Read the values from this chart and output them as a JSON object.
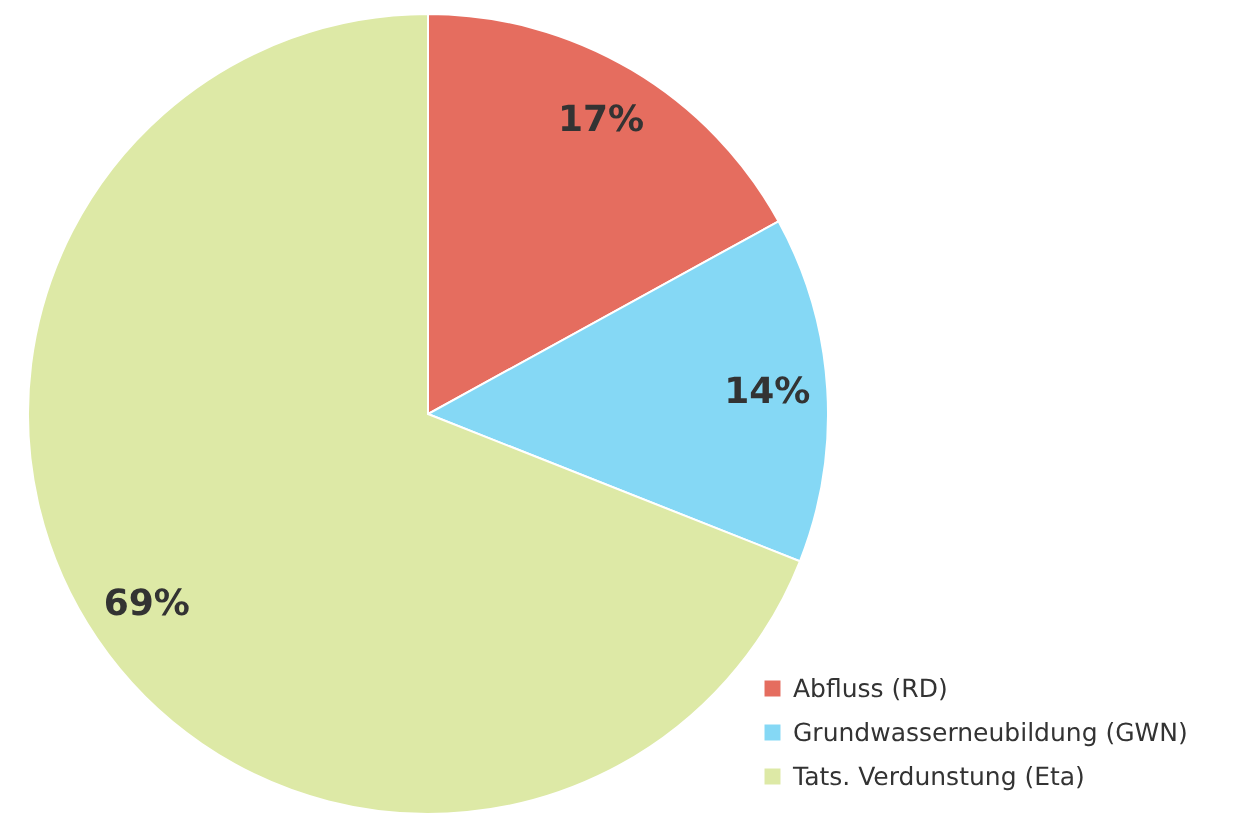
{
  "chart_data": {
    "type": "pie",
    "categories": [
      "Abfluss (RD)",
      "Grundwasserneubildung (GWN)",
      "Tats. Verdunstung (Eta)"
    ],
    "values": [
      17,
      14,
      69
    ],
    "colors": [
      "#e56d5f",
      "#85d8f5",
      "#dde9a6"
    ],
    "value_labels": [
      "17%",
      "14%",
      "69%"
    ],
    "legend": "bottom right"
  }
}
